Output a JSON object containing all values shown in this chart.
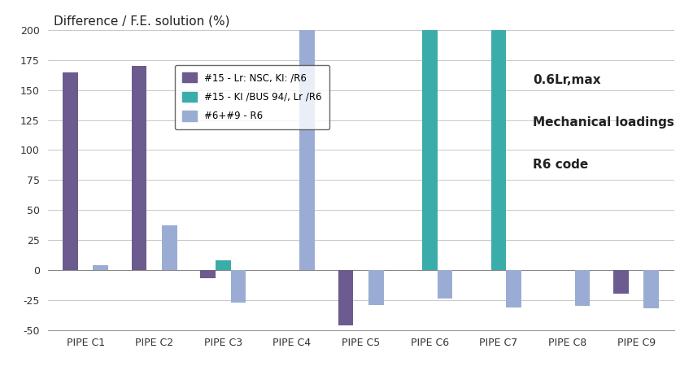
{
  "categories": [
    "PIPE C1",
    "PIPE C2",
    "PIPE C3",
    "PIPE C4",
    "PIPE C5",
    "PIPE C6",
    "PIPE C7",
    "PIPE C8",
    "PIPE C9"
  ],
  "series": [
    {
      "name": "#15 - Lr: NSC, KI: /R6",
      "color": "#6b5b8e",
      "values": [
        165,
        170,
        -7,
        0,
        -46,
        0,
        0,
        0,
        -20
      ]
    },
    {
      "name": "#15 - KI /BUS 94/, Lr /R6",
      "color": "#3aacaa",
      "values": [
        0,
        0,
        8,
        0,
        0,
        200,
        200,
        0,
        0
      ]
    },
    {
      "name": "#6+#9 - R6",
      "color": "#9bacd4",
      "values": [
        4,
        37,
        -27,
        200,
        -29,
        -24,
        -31,
        -30,
        -32
      ]
    }
  ],
  "ylim": [
    -50,
    200
  ],
  "yticks": [
    -50,
    -25,
    0,
    25,
    50,
    75,
    100,
    125,
    150,
    175,
    200
  ],
  "ylabel": "Difference / F.E. solution (%)",
  "annotation_lines": [
    "0.6Lr,max",
    "Mechanical loadings",
    "R6 code"
  ],
  "bar_width": 0.22,
  "background_color": "#ffffff",
  "grid_color": "#c8c8c8"
}
